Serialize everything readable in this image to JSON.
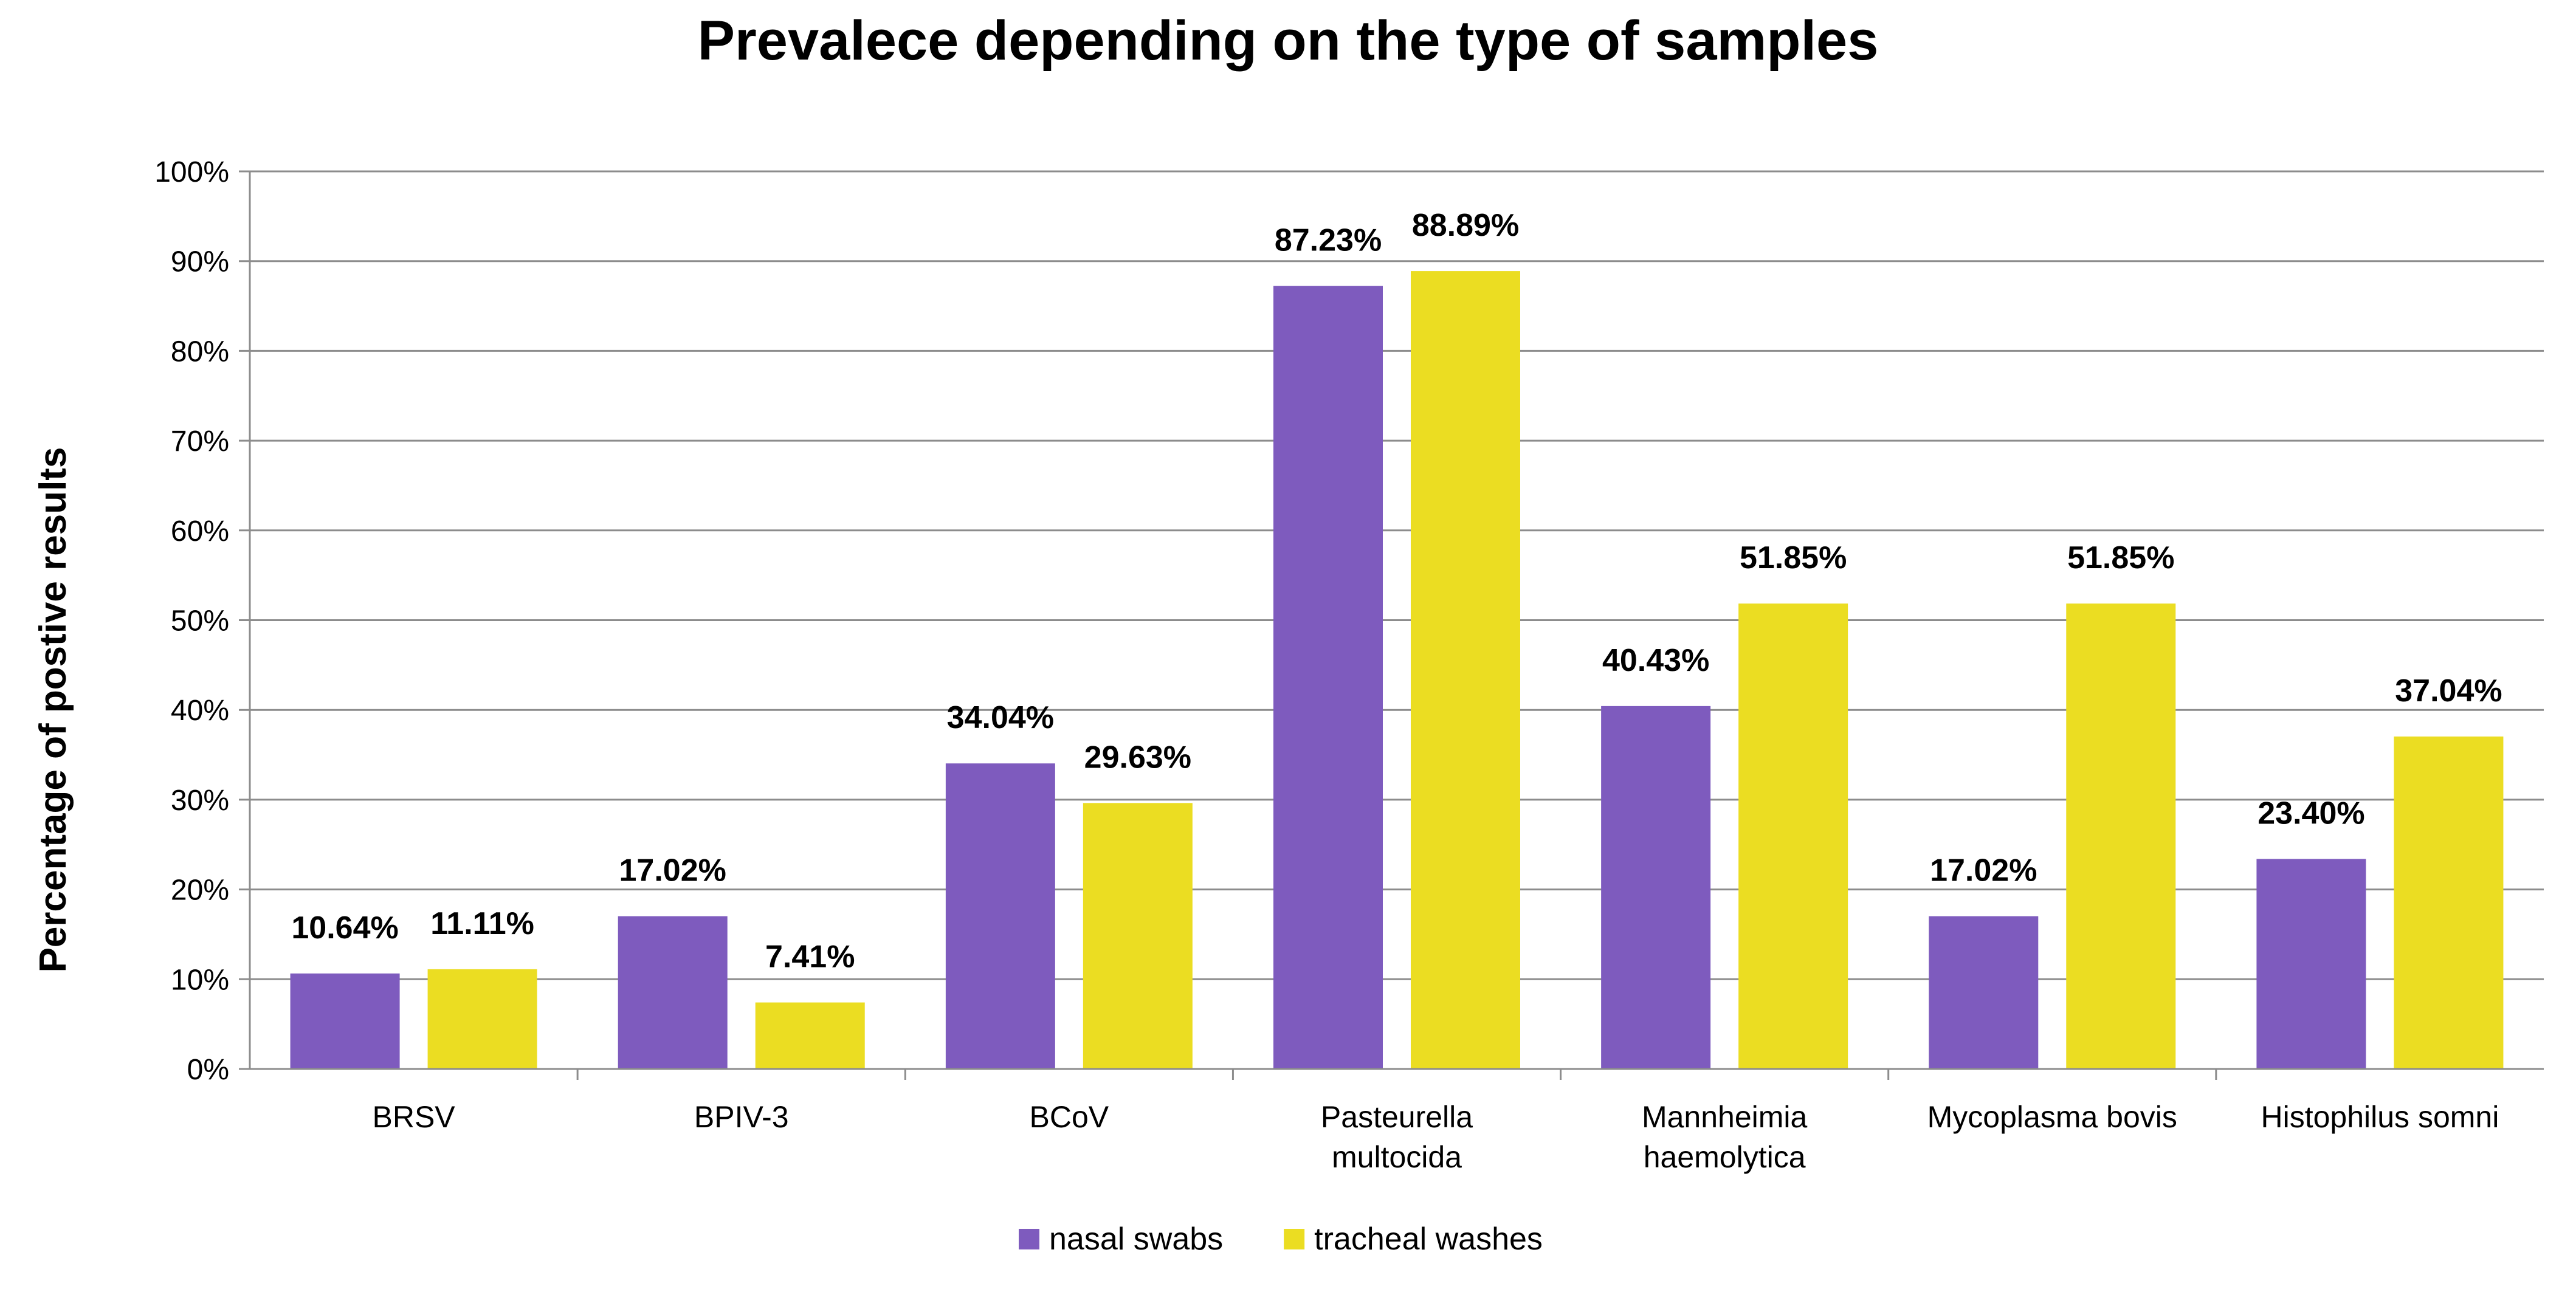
{
  "chart_data": {
    "type": "bar",
    "title": "Prevalece depending on the type of samples",
    "xlabel": "",
    "ylabel": "Percentage of postive results",
    "ylim": [
      0,
      100
    ],
    "yticks": [
      "0%",
      "10%",
      "20%",
      "30%",
      "40%",
      "50%",
      "60%",
      "70%",
      "80%",
      "90%",
      "100%"
    ],
    "grid": true,
    "legend_position": "bottom",
    "categories": [
      [
        "BRSV"
      ],
      [
        "BPIV-3"
      ],
      [
        "BCoV"
      ],
      [
        "Pasteurella",
        "multocida"
      ],
      [
        "Mannheimia",
        "haemolytica"
      ],
      [
        "Mycoplasma bovis"
      ],
      [
        "Histophilus somni"
      ]
    ],
    "series": [
      {
        "name": "nasal swabs",
        "color": "#7e5bbe",
        "values": [
          10.64,
          17.02,
          34.04,
          87.23,
          40.43,
          17.02,
          23.4
        ],
        "labels": [
          "10.64%",
          "17.02%",
          "34.04%",
          "87.23%",
          "40.43%",
          "17.02%",
          "23.40%"
        ]
      },
      {
        "name": "tracheal washes",
        "color": "#ebdd22",
        "values": [
          11.11,
          7.41,
          29.63,
          88.89,
          51.85,
          51.85,
          37.04
        ],
        "labels": [
          "11.11%",
          "7.41%",
          "29.63%",
          "88.89%",
          "51.85%",
          "51.85%",
          "37.04%"
        ]
      }
    ]
  }
}
